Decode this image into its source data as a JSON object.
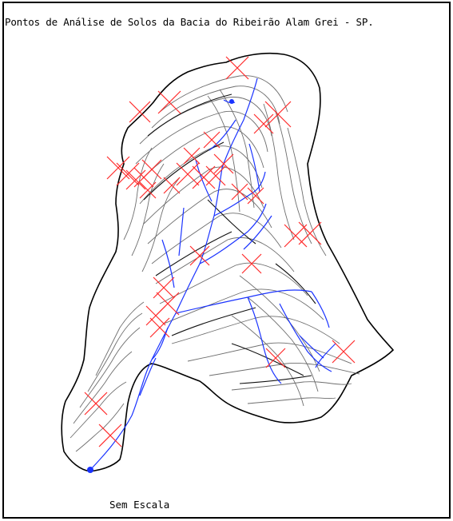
{
  "title": "Pontos de Análise de Solos da Bacia do Ribeirão Alam Grei - SP.",
  "scale_note": "Sem Escala",
  "colors": {
    "boundary": "#000000",
    "contours": "#6e6e6e",
    "drainage": "#1a33ff",
    "sample_points": "#ff2a2a"
  },
  "icons": {
    "sample_point": "x-marker"
  },
  "sample_point_count": 32
}
